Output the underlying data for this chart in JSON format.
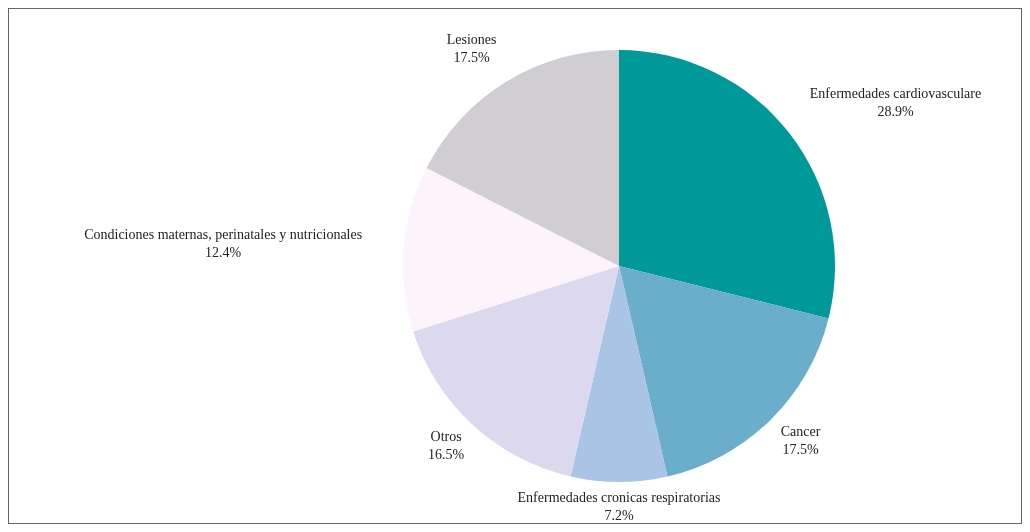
{
  "chart_data": {
    "type": "pie",
    "categories": [
      "Enfermedades cardiovasculare",
      "Cancer",
      "Enfermedades cronicas respiratorias",
      "Otros",
      "Condiciones maternas, perinatales y nutricionales",
      "Lesiones"
    ],
    "values": [
      28.9,
      17.5,
      7.2,
      16.5,
      12.4,
      17.5
    ],
    "colors": [
      "#009999",
      "#6aaecb",
      "#a9c4e4",
      "#dcd9ef",
      "#fdf3fb",
      "#d0ced3"
    ],
    "value_labels": [
      "28.9%",
      "17.5%",
      "7.2%",
      "16.5%",
      "12.4%",
      "17.5%"
    ],
    "legend": false
  }
}
